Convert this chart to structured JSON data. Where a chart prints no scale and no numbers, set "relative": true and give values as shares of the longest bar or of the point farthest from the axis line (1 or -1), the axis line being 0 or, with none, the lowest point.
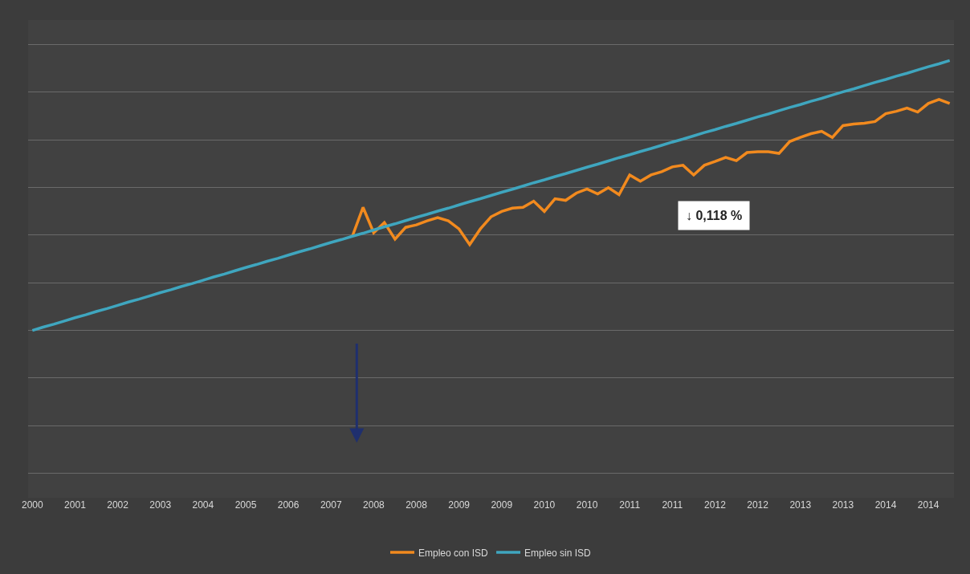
{
  "chart_data": {
    "type": "line",
    "relative": true,
    "grid": "y",
    "legend": "bottom",
    "marker": "none",
    "line_style": "solid",
    "categories": [
      "2000",
      null,
      null,
      null,
      "2001",
      null,
      null,
      null,
      "2002",
      null,
      null,
      null,
      "2003",
      null,
      null,
      null,
      "2004",
      null,
      null,
      null,
      "2005",
      null,
      null,
      null,
      "2006",
      null,
      null,
      null,
      "2007",
      null,
      null,
      null,
      "2008",
      null,
      null,
      null,
      "2008",
      null,
      null,
      null,
      "2009",
      null,
      null,
      null,
      "2009",
      null,
      null,
      null,
      "2010",
      null,
      null,
      null,
      "2010",
      null,
      null,
      null,
      "2011",
      null,
      null,
      null,
      "2011",
      null,
      null,
      null,
      "2012",
      null,
      null,
      null,
      "2012",
      null,
      null,
      null,
      "2013",
      null,
      null,
      null,
      "2013",
      null,
      null,
      null,
      "2014",
      null,
      null,
      null,
      "2014",
      null,
      null
    ],
    "series": [
      {
        "name": "Empleo con ISD",
        "color": "#f28a1e",
        "values": [
          null,
          null,
          null,
          null,
          null,
          null,
          null,
          null,
          null,
          null,
          null,
          null,
          null,
          null,
          null,
          null,
          null,
          null,
          null,
          null,
          null,
          null,
          null,
          null,
          null,
          null,
          null,
          null,
          null,
          null,
          0.349,
          0.456,
          0.362,
          0.4,
          0.338,
          0.382,
          0.391,
          0.406,
          0.418,
          0.406,
          0.376,
          0.318,
          0.376,
          0.421,
          0.441,
          0.453,
          0.456,
          0.479,
          0.441,
          0.488,
          0.482,
          0.509,
          0.524,
          0.506,
          0.529,
          0.503,
          0.576,
          0.553,
          0.576,
          0.588,
          0.606,
          0.612,
          0.576,
          0.612,
          0.626,
          0.641,
          0.629,
          0.659,
          0.662,
          0.662,
          0.656,
          0.7,
          0.715,
          0.729,
          0.738,
          0.715,
          0.759,
          0.765,
          0.768,
          0.774,
          0.803,
          0.812,
          0.824,
          0.809,
          0.841,
          0.856,
          0.841
        ]
      },
      {
        "name": "Empleo sin ISD",
        "color": "#3fa6bf",
        "values": [
          0,
          0.012,
          0.023,
          0.035,
          0.047,
          0.058,
          0.07,
          0.081,
          0.093,
          0.105,
          0.116,
          0.128,
          0.14,
          0.151,
          0.163,
          0.174,
          0.186,
          0.198,
          0.209,
          0.221,
          0.233,
          0.244,
          0.256,
          0.267,
          0.279,
          0.291,
          0.302,
          0.314,
          0.326,
          0.337,
          0.349,
          0.36,
          0.372,
          0.384,
          0.395,
          0.407,
          0.419,
          0.43,
          0.442,
          0.453,
          0.465,
          0.477,
          0.488,
          0.5,
          0.512,
          0.523,
          0.535,
          0.547,
          0.558,
          0.57,
          0.581,
          0.593,
          0.605,
          0.616,
          0.628,
          0.64,
          0.651,
          0.663,
          0.674,
          0.686,
          0.698,
          0.709,
          0.721,
          0.733,
          0.744,
          0.756,
          0.767,
          0.779,
          0.791,
          0.802,
          0.814,
          0.826,
          0.837,
          0.849,
          0.86,
          0.872,
          0.884,
          0.895,
          0.907,
          0.919,
          0.93,
          0.942,
          0.953,
          0.965,
          0.977,
          0.988,
          1
        ]
      }
    ],
    "annotations": [
      "↓ 0,118 %"
    ]
  }
}
